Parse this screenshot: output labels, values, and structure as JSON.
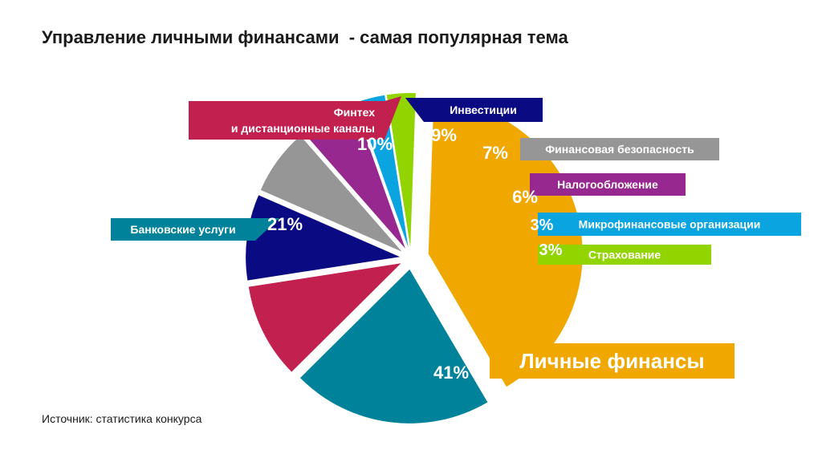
{
  "title": "Управление личными финансами  - самая популярная тема",
  "source": "Источник: статистика конкурса",
  "chart_data": {
    "type": "pie",
    "slices": [
      {
        "name": "Личные финансы",
        "value": 41,
        "label": "41%",
        "color": "#F0A800"
      },
      {
        "name": "Банковские услуги",
        "value": 21,
        "label": "21%",
        "color": "#00839A"
      },
      {
        "name": "Финтех и дистанционные каналы",
        "lines": [
          "Финтех",
          "и дистанционные каналы"
        ],
        "value": 10,
        "label": "10%",
        "color": "#C2204E"
      },
      {
        "name": "Инвестиции",
        "value": 9,
        "label": "9%",
        "color": "#0A0A82"
      },
      {
        "name": "Финансовая безопасность",
        "value": 7,
        "label": "7%",
        "color": "#969696"
      },
      {
        "name": "Налогообложение",
        "value": 6,
        "label": "6%",
        "color": "#97288F"
      },
      {
        "name": "Микрофинансовые организации",
        "value": 3,
        "label": "3%",
        "color": "#0AA5E0"
      },
      {
        "name": "Страхование",
        "value": 3,
        "label": "3%",
        "color": "#92D400"
      }
    ]
  }
}
